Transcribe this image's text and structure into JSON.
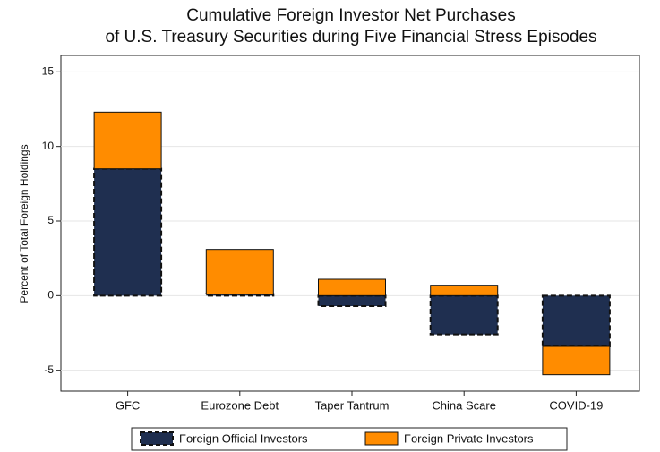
{
  "chart_data": {
    "type": "stacked_bar",
    "title": [
      "Cumulative Foreign Investor Net Purchases",
      "of U.S. Treasury Securities during Five Financial Stress Episodes"
    ],
    "y_label": "Percent of Total Foreign Holdings",
    "categories": [
      "GFC",
      "Eurozone Debt",
      "Taper Tantrum",
      "China Scare",
      "COVID-19"
    ],
    "series": [
      {
        "name": "Foreign Official Investors",
        "color": "#1f2f50",
        "values": [
          8.5,
          0.1,
          -0.7,
          -2.6,
          -3.4
        ]
      },
      {
        "name": "Foreign Private Investors",
        "color": "#ff8c00",
        "values": [
          3.8,
          3.0,
          1.1,
          0.7,
          -1.9
        ]
      }
    ],
    "ylim": [
      -6.4,
      16.1
    ],
    "yticks": [
      -5,
      0,
      5,
      10,
      15
    ],
    "grid": true,
    "legend": "bottom"
  }
}
